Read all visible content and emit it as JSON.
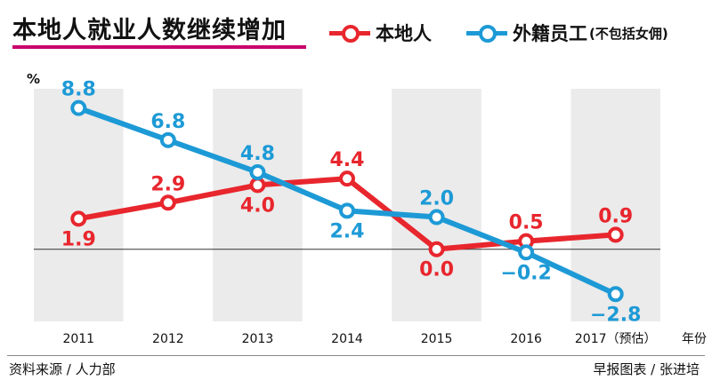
{
  "colors": {
    "local": "#e8262d",
    "foreign": "#1d9ad6",
    "band": "#ebebeb"
  },
  "header": {
    "title": "本地人就业人数继续增加"
  },
  "chart_data": {
    "type": "line",
    "title": "本地人就业人数继续增加",
    "ylabel": "%",
    "xlabel": "",
    "x_unit_label": "年份",
    "categories": [
      "2011",
      "2012",
      "2013",
      "2014",
      "2015",
      "2016",
      "2017（预估）"
    ],
    "ylim": [
      -4.5,
      10
    ],
    "series": [
      {
        "name": "本地人",
        "legend_label": "本地人",
        "color_key": "local",
        "values": [
          1.9,
          2.9,
          4.0,
          4.4,
          0.0,
          0.5,
          0.9
        ],
        "labels": [
          "1.9",
          "2.9",
          "4.0",
          "4.4",
          "0.0",
          "0.5",
          "0.9"
        ]
      },
      {
        "name": "外籍员工",
        "legend_label": "外籍员工",
        "legend_note": "(不包括女佣)",
        "color_key": "foreign",
        "values": [
          8.8,
          6.8,
          4.8,
          2.4,
          2.0,
          -0.2,
          -2.8
        ],
        "labels": [
          "8.8",
          "6.8",
          "4.8",
          "2.4",
          "2.0",
          "−0.2",
          "−2.8"
        ]
      }
    ]
  },
  "footer": {
    "source": "资料来源 / 人力部",
    "credit": "早报图表 / 张进培"
  }
}
